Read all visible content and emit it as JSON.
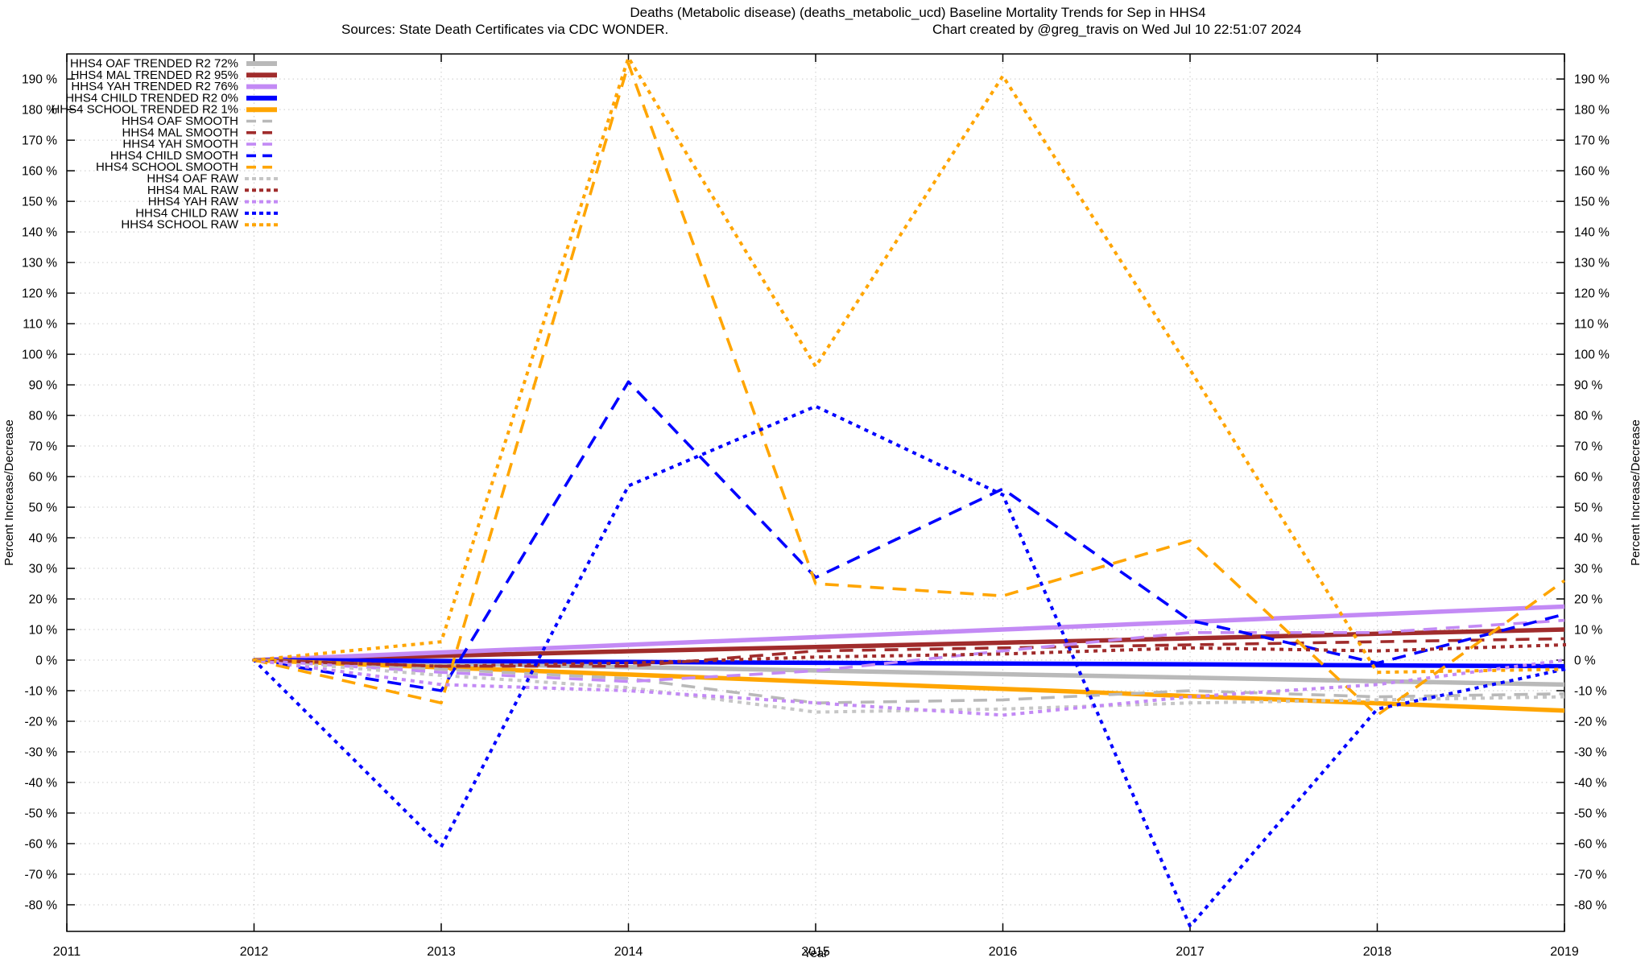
{
  "title": "Deaths (Metabolic disease) (deaths_metabolic_ucd)  Baseline Mortality Trends for Sep in HHS4",
  "subtitle_left": "Sources: State Death Certificates via CDC WONDER.",
  "subtitle_right": "Chart created by @greg_travis on Wed Jul 10 22:51:07 2024",
  "chart_data": {
    "type": "line",
    "title": "Deaths (Metabolic disease) (deaths_metabolic_ucd)  Baseline Mortality Trends for Sep in HHS4",
    "xlabel": "Year",
    "ylabel": "Percent Increase/Decrease",
    "ylabel_right": "Percent Increase/Decrease",
    "xlim": [
      2011,
      2019
    ],
    "ylim": [
      -88.7,
      198.2
    ],
    "x_ticks": [
      2011,
      2012,
      2013,
      2014,
      2015,
      2016,
      2017,
      2018,
      2019
    ],
    "y_ticks": {
      "min": -80,
      "max": 190,
      "step": 10,
      "suffix": " %"
    },
    "grid": true,
    "legend_position": "top-left",
    "x": [
      2012,
      2013,
      2014,
      2015,
      2016,
      2017,
      2018,
      2019
    ],
    "series": [
      {
        "name": "HHS4 OAF TRENDED",
        "legend_label": "HHS4 OAF TRENDED R2  72%",
        "color": "#b9b9b9",
        "line_style": "solid",
        "values": [
          0,
          -1.1,
          -2.3,
          -3.4,
          -4.6,
          -5.7,
          -6.9,
          -8
        ]
      },
      {
        "name": "HHS4 MAL TRENDED",
        "legend_label": "HHS4 MAL TRENDED R2  95%",
        "color": "#a02c2c",
        "line_style": "solid",
        "values": [
          0,
          1.4,
          2.9,
          4.3,
          5.7,
          7.1,
          8.6,
          10
        ]
      },
      {
        "name": "HHS4 YAH TRENDED",
        "legend_label": "HHS4 YAH TRENDED R2  76%",
        "color": "#c38af5",
        "line_style": "solid",
        "values": [
          0,
          2.5,
          5,
          7.5,
          10,
          12.5,
          15,
          17.5
        ]
      },
      {
        "name": "HHS4 CHILD TRENDED",
        "legend_label": "HHS4 CHILD TRENDED R2   0%",
        "color": "#0000ff",
        "line_style": "solid",
        "values": [
          0,
          -0.3,
          -0.6,
          -0.9,
          -1.1,
          -1.4,
          -1.7,
          -2
        ]
      },
      {
        "name": "HHS4 SCHOOL TRENDED",
        "legend_label": "HHS4 SCHOOL TRENDED R2   1%",
        "color": "#ffa500",
        "line_style": "solid",
        "values": [
          0,
          -2.4,
          -4.7,
          -7.1,
          -9.4,
          -11.8,
          -14.1,
          -16.5
        ]
      },
      {
        "name": "HHS4 OAF SMOOTH",
        "legend_label": "HHS4 OAF SMOOTH",
        "color": "#b9b9b9",
        "line_style": "dashed",
        "values": [
          0,
          -3,
          -6,
          -14,
          -13,
          -10,
          -12,
          -11
        ]
      },
      {
        "name": "HHS4 MAL SMOOTH",
        "legend_label": "HHS4 MAL SMOOTH",
        "color": "#a02c2c",
        "line_style": "dashed",
        "values": [
          0,
          -2,
          -2,
          3,
          4,
          5,
          6,
          7
        ]
      },
      {
        "name": "HHS4 YAH SMOOTH",
        "legend_label": "HHS4 YAH SMOOTH",
        "color": "#c38af5",
        "line_style": "dashed",
        "values": [
          0,
          -4,
          -7,
          -3.5,
          3,
          9,
          9,
          13
        ]
      },
      {
        "name": "HHS4 CHILD SMOOTH",
        "legend_label": "HHS4 CHILD SMOOTH",
        "color": "#0000ff",
        "line_style": "dashed",
        "values": [
          0,
          -10,
          91,
          27,
          56,
          13,
          -1,
          15
        ]
      },
      {
        "name": "HHS4 SCHOOL SMOOTH",
        "legend_label": "HHS4 SCHOOL SMOOTH",
        "color": "#ffa500",
        "line_style": "dashed",
        "values": [
          0,
          -14,
          195,
          25,
          21,
          39,
          -18,
          26
        ]
      },
      {
        "name": "HHS4 OAF RAW",
        "legend_label": "HHS4 OAF RAW",
        "color": "#c6c6c6",
        "line_style": "dotted",
        "values": [
          0,
          -5,
          -9,
          -17,
          -16,
          -14,
          -13,
          -12
        ]
      },
      {
        "name": "HHS4 MAL RAW",
        "legend_label": "HHS4 MAL RAW",
        "color": "#a02c2c",
        "line_style": "dotted",
        "values": [
          0,
          -2,
          -1,
          1,
          2,
          4,
          3,
          5
        ]
      },
      {
        "name": "HHS4 YAH RAW",
        "legend_label": "HHS4 YAH RAW",
        "color": "#c38af5",
        "line_style": "dotted",
        "values": [
          0,
          -8,
          -10,
          -14,
          -18,
          -12,
          -8,
          0
        ]
      },
      {
        "name": "HHS4 CHILD RAW",
        "legend_label": "HHS4 CHILD RAW",
        "color": "#0000ff",
        "line_style": "dotted",
        "values": [
          0,
          -61,
          57,
          83,
          54,
          -87,
          -16,
          -3
        ]
      },
      {
        "name": "HHS4 SCHOOL RAW",
        "legend_label": "HHS4 SCHOOL RAW",
        "color": "#ffa500",
        "line_style": "dotted",
        "values": [
          0,
          6,
          197,
          96,
          191,
          95,
          -4,
          -3
        ]
      }
    ]
  }
}
